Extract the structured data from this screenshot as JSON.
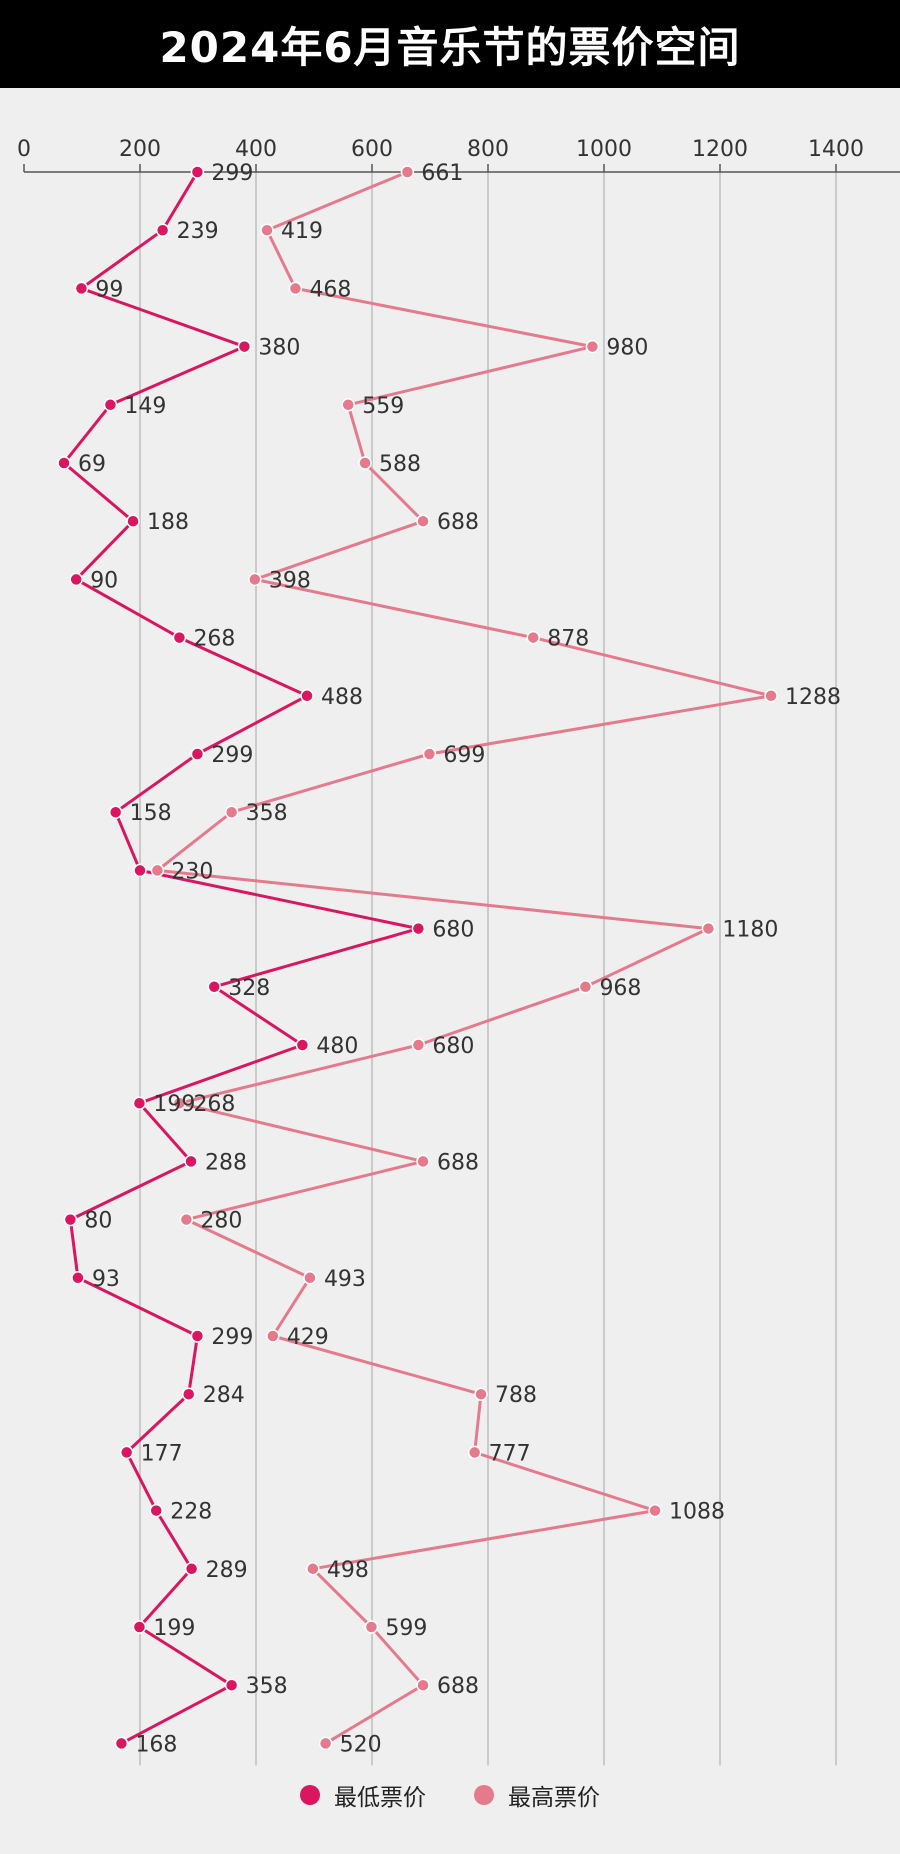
{
  "title": "2024年6月音乐节的票价空间",
  "colors": {
    "min": "#d9165f",
    "max": "#e57a8c"
  },
  "legend": {
    "min_label": "最低票价",
    "max_label": "最高票价"
  },
  "chart_data": {
    "type": "line",
    "orientation": "horizontal-value-axis",
    "xlim": [
      0,
      1500
    ],
    "x_ticks": [
      0,
      200,
      400,
      600,
      800,
      1000,
      1200,
      1400
    ],
    "grid": true,
    "legend_position": "bottom-center",
    "series": [
      {
        "name": "最低票价",
        "values": [
          299,
          239,
          99,
          380,
          149,
          69,
          188,
          90,
          268,
          488,
          299,
          158,
          200,
          680,
          328,
          480,
          199,
          288,
          80,
          93,
          299,
          284,
          177,
          228,
          289,
          199,
          358,
          168
        ]
      },
      {
        "name": "最高票价",
        "values": [
          661,
          419,
          468,
          980,
          559,
          588,
          688,
          398,
          878,
          1288,
          699,
          358,
          230,
          1180,
          968,
          680,
          268,
          688,
          280,
          493,
          429,
          788,
          777,
          1088,
          498,
          599,
          688,
          520
        ]
      }
    ],
    "value_labels_min": [
      "299",
      "239",
      "99",
      "380",
      "149",
      "69",
      "188",
      "90",
      "268",
      "488",
      "299",
      "158",
      "",
      "680",
      "328",
      "480",
      "199",
      "288",
      "80",
      "93",
      "299",
      "284",
      "177",
      "228",
      "289",
      "199",
      "358",
      "168"
    ],
    "value_labels_max": [
      "661",
      "419",
      "468",
      "980",
      "559",
      "588",
      "688",
      "398",
      "878",
      "1288",
      "699",
      "358",
      "230",
      "1180",
      "968",
      "680",
      "268",
      "688",
      "280",
      "493",
      "429",
      "788",
      "777",
      "1088",
      "498",
      "599",
      "688",
      "520"
    ]
  }
}
